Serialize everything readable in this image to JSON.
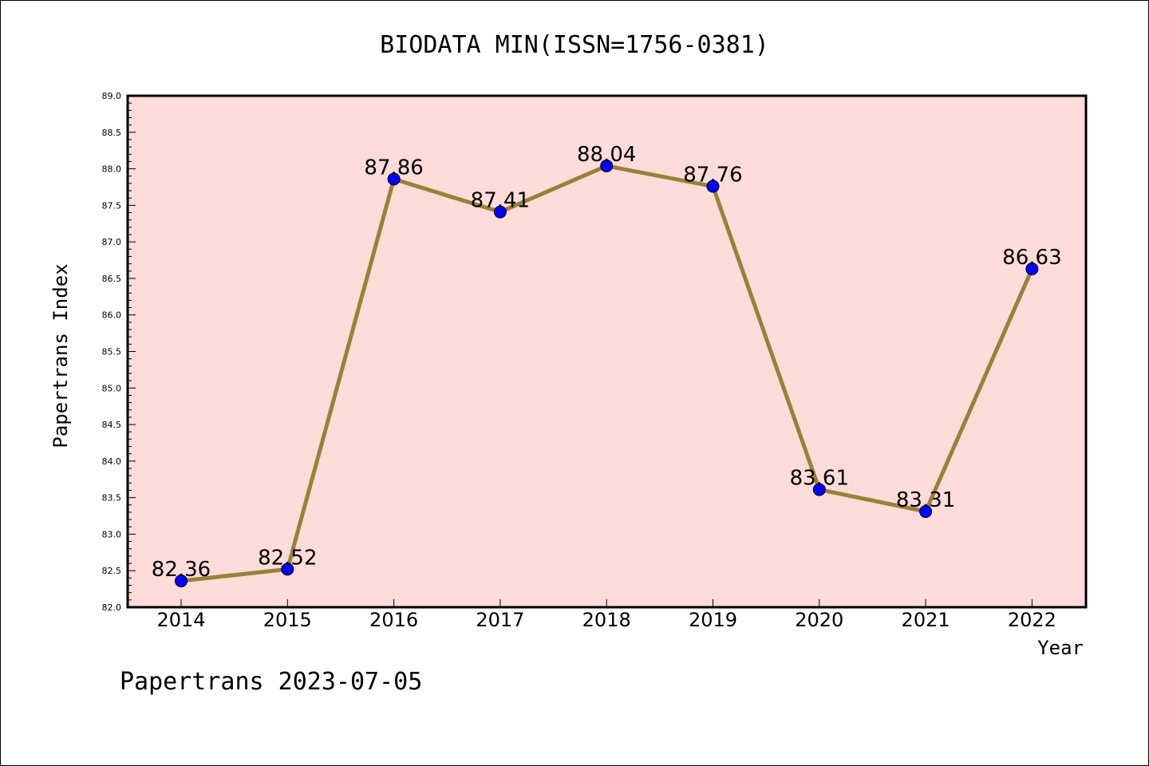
{
  "chart_data": {
    "type": "line",
    "title": "BIODATA MIN(ISSN=1756-0381)",
    "xlabel": "Year",
    "ylabel": "Papertrans Index",
    "categories": [
      "2014",
      "2015",
      "2016",
      "2017",
      "2018",
      "2019",
      "2020",
      "2021",
      "2022"
    ],
    "values": [
      82.36,
      82.52,
      87.86,
      87.41,
      88.04,
      87.76,
      83.61,
      83.31,
      86.63
    ],
    "data_labels": [
      "82.36",
      "82.52",
      "87.86",
      "87.41",
      "88.04",
      "87.76",
      "83.61",
      "83.31",
      "86.63"
    ],
    "ylim": [
      82.0,
      89.0
    ],
    "yticks": [
      "82.0",
      "82.5",
      "83.0",
      "83.5",
      "84.0",
      "84.5",
      "85.0",
      "85.5",
      "86.0",
      "86.5",
      "87.0",
      "87.5",
      "88.0",
      "88.5",
      "89.0"
    ],
    "grid": false,
    "colors": {
      "plot_background": "#fddcd9",
      "line": "#9a8039",
      "marker": "#0000ff"
    }
  },
  "footer": "Papertrans 2023-07-05"
}
